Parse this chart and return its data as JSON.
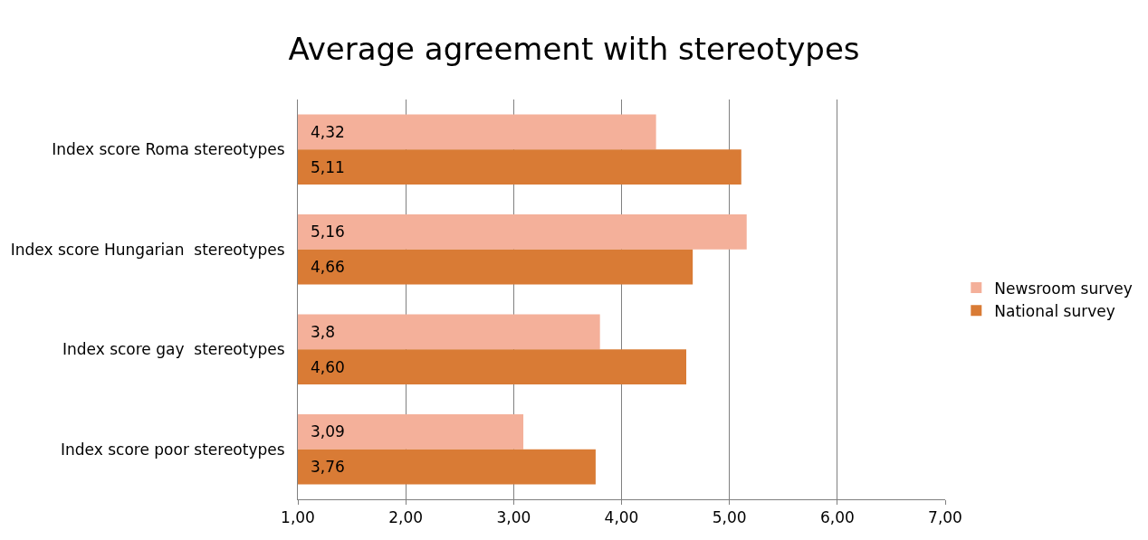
{
  "chart_data": {
    "type": "bar",
    "orientation": "horizontal",
    "title": "Average agreement with stereotypes",
    "categories": [
      "Index score Roma stereotypes",
      "Index score Hungarian  stereotypes",
      "Index score gay  stereotypes",
      "Index score poor stereotypes"
    ],
    "series": [
      {
        "name": "Newsroom survey",
        "color": "#f4b09a",
        "values": [
          4.32,
          5.16,
          3.8,
          3.09
        ],
        "value_labels": [
          "4,32",
          "5,16",
          "3,8",
          "3,09"
        ]
      },
      {
        "name": "National survey",
        "color": "#d97b35",
        "values": [
          5.11,
          4.66,
          4.6,
          3.76
        ],
        "value_labels": [
          "5,11",
          "4,66",
          "4,60",
          "3,76"
        ]
      }
    ],
    "xlim": [
      1,
      7
    ],
    "xticks": [
      {
        "value": 1,
        "label": "1,00"
      },
      {
        "value": 2,
        "label": "2,00"
      },
      {
        "value": 3,
        "label": "3,00"
      },
      {
        "value": 4,
        "label": "4,00"
      },
      {
        "value": 5,
        "label": "5,00"
      },
      {
        "value": 6,
        "label": "6,00"
      },
      {
        "value": 7,
        "label": "7,00"
      }
    ],
    "grid": "x",
    "legend": "right"
  }
}
